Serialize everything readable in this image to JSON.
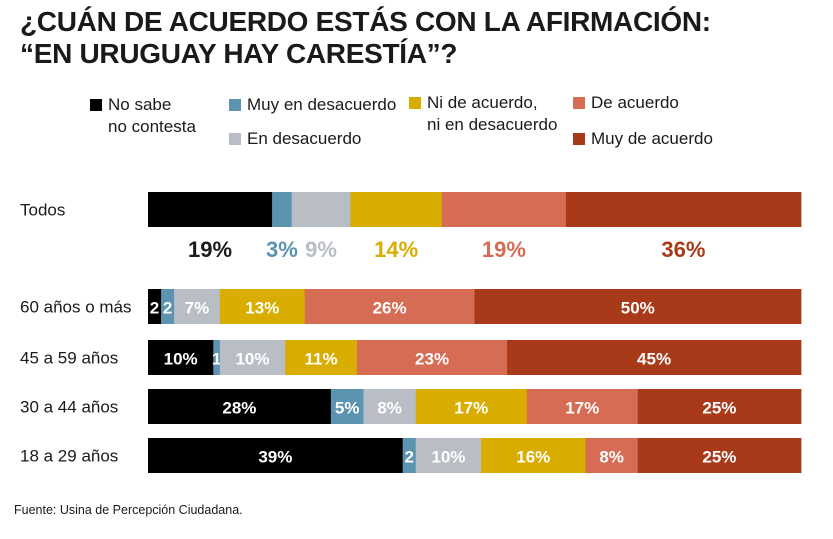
{
  "chart_data": {
    "type": "stacked-bar-horizontal",
    "title_lines": [
      "¿CUÁN DE ACUERDO ESTÁS CON LA AFIRMACIÓN:",
      "“EN URUGUAY HAY CARESTÍA”?"
    ],
    "series": [
      {
        "name": "No sabe\nno contesta",
        "color": "#000000",
        "label_color": "#ffffff"
      },
      {
        "name": "Muy en desacuerdo",
        "color": "#5b93b0",
        "label_color": "#ffffff"
      },
      {
        "name": "En desacuerdo",
        "color": "#b9bec6",
        "label_color": "#ffffff"
      },
      {
        "name": "Ni de acuerdo,\nni en desacuerdo",
        "color": "#d8ad00",
        "label_color": "#ffffff"
      },
      {
        "name": "De acuerdo",
        "color": "#d76c55",
        "label_color": "#ffffff"
      },
      {
        "name": "Muy de acuerdo",
        "color": "#a83a1a",
        "label_color": "#ffffff"
      }
    ],
    "summary": {
      "category": "Todos",
      "values": [
        19,
        3,
        9,
        14,
        19,
        36
      ],
      "labels": [
        "19%",
        "3%",
        "9%",
        "14%",
        "19%",
        "36%"
      ],
      "label_colors": [
        "#1a1a1a",
        "#5b93b0",
        "#b9bec6",
        "#d8ad00",
        "#d76c55",
        "#a83a1a"
      ]
    },
    "groups": [
      {
        "category": "60 años o más",
        "values": [
          2,
          2,
          7,
          13,
          26,
          50
        ],
        "labels": [
          "2",
          "2",
          "7%",
          "13%",
          "26%",
          "50%"
        ]
      },
      {
        "category": "45 a 59 años",
        "values": [
          10,
          1,
          10,
          11,
          23,
          45
        ],
        "labels": [
          "10%",
          "1",
          "10%",
          "11%",
          "23%",
          "45%"
        ]
      },
      {
        "category": "30 a 44 años",
        "values": [
          28,
          5,
          8,
          17,
          17,
          25
        ],
        "labels": [
          "28%",
          "5%",
          "8%",
          "17%",
          "17%",
          "25%"
        ]
      },
      {
        "category": "18 a 29 años",
        "values": [
          39,
          2,
          10,
          16,
          8,
          25
        ],
        "labels": [
          "39%",
          "2",
          "10%",
          "16%",
          "8%",
          "25%"
        ]
      }
    ]
  },
  "source": "Fuente: Usina de Percepción Ciudadana."
}
